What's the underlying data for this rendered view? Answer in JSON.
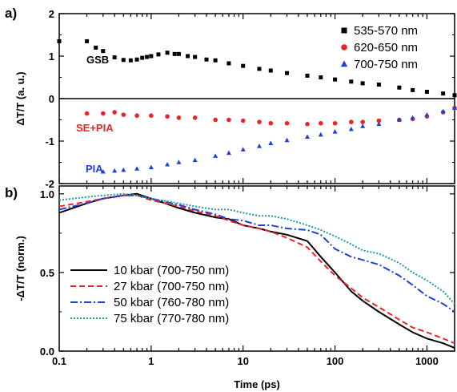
{
  "chart_data": [
    {
      "type": "scatter",
      "panel_label": "a)",
      "ylabel": "ΔT/T (a. u.)",
      "xlim": [
        0.1,
        2000
      ],
      "xscale": "log",
      "ylim": [
        -2,
        2
      ],
      "yticks": [
        "-2",
        "-1",
        "0",
        "1",
        "2"
      ],
      "zero_line": true,
      "legend_position": "top-right",
      "annotations": [
        {
          "text": "GSB",
          "x": 0.22,
          "y": 0.85,
          "color": "#000000"
        },
        {
          "text": "SE+PIA",
          "x": 0.11,
          "y": -0.65,
          "color": "#e8262a"
        },
        {
          "text": "PIA",
          "x": 0.12,
          "y": -1.45,
          "color": "#1f3fd6"
        }
      ],
      "series": [
        {
          "name": "535-570 nm",
          "color": "#000000",
          "marker": "square",
          "x": [
            0.1,
            0.2,
            0.25,
            0.3,
            0.4,
            0.5,
            0.6,
            0.7,
            0.8,
            0.9,
            1.0,
            1.2,
            1.5,
            1.8,
            2.0,
            2.5,
            3.0,
            4.0,
            5.0,
            7.0,
            10,
            15,
            20,
            30,
            50,
            70,
            100,
            150,
            200,
            300,
            500,
            700,
            1000,
            1500,
            2000
          ],
          "y": [
            1.35,
            1.35,
            1.2,
            1.12,
            0.97,
            0.91,
            0.9,
            0.92,
            0.96,
            0.98,
            1.0,
            1.04,
            1.08,
            1.05,
            1.05,
            1.0,
            0.98,
            0.92,
            0.9,
            0.83,
            0.77,
            0.7,
            0.66,
            0.6,
            0.54,
            0.5,
            0.45,
            0.4,
            0.36,
            0.33,
            0.26,
            0.2,
            0.16,
            0.12,
            0.08
          ]
        },
        {
          "name": "620-650 nm",
          "color": "#e8262a",
          "marker": "circle",
          "x": [
            0.2,
            0.3,
            0.4,
            0.5,
            0.7,
            1.0,
            1.5,
            2.0,
            3.0,
            5.0,
            7.0,
            10,
            15,
            20,
            30,
            50,
            70,
            100,
            150,
            200,
            300,
            500,
            700,
            1000,
            1500,
            2000
          ],
          "y": [
            -0.35,
            -0.35,
            -0.32,
            -0.38,
            -0.4,
            -0.4,
            -0.42,
            -0.45,
            -0.45,
            -0.5,
            -0.5,
            -0.52,
            -0.55,
            -0.58,
            -0.58,
            -0.6,
            -0.58,
            -0.58,
            -0.55,
            -0.55,
            -0.52,
            -0.5,
            -0.48,
            -0.42,
            -0.32,
            -0.22
          ]
        },
        {
          "name": "700-750 nm",
          "color": "#1f3fd6",
          "marker": "triangle",
          "x": [
            0.3,
            0.4,
            0.5,
            0.7,
            1.0,
            1.5,
            2.0,
            3.0,
            5.0,
            7.0,
            10,
            15,
            20,
            30,
            50,
            70,
            100,
            150,
            200,
            300,
            500,
            700,
            1000,
            1500,
            2000
          ],
          "y": [
            -1.72,
            -1.7,
            -1.68,
            -1.65,
            -1.62,
            -1.55,
            -1.5,
            -1.45,
            -1.35,
            -1.28,
            -1.2,
            -1.12,
            -1.05,
            -0.98,
            -0.9,
            -0.85,
            -0.78,
            -0.72,
            -0.65,
            -0.6,
            -0.5,
            -0.45,
            -0.38,
            -0.3,
            -0.22
          ]
        }
      ]
    },
    {
      "type": "line",
      "panel_label": "b)",
      "xlabel": "Time (ps)",
      "ylabel": "-ΔT/T (norm.)",
      "xlim": [
        0.1,
        2000
      ],
      "xscale": "log",
      "xticks": [
        "0.1",
        "1",
        "10",
        "100",
        "1000"
      ],
      "ylim": [
        0.0,
        1.05
      ],
      "yticks": [
        "0.0",
        "0.5",
        "1.0"
      ],
      "legend_position": "lower-left",
      "series": [
        {
          "name": "10 kbar (700-750 nm)",
          "color": "#000000",
          "dash": "solid",
          "x": [
            0.1,
            0.2,
            0.3,
            0.5,
            0.7,
            1,
            2,
            3,
            5,
            7,
            10,
            15,
            20,
            30,
            50,
            70,
            100,
            150,
            200,
            300,
            500,
            700,
            1000,
            1500,
            2000
          ],
          "y": [
            0.88,
            0.94,
            0.97,
            0.99,
            1.0,
            0.97,
            0.91,
            0.88,
            0.85,
            0.84,
            0.8,
            0.78,
            0.76,
            0.74,
            0.7,
            0.6,
            0.5,
            0.38,
            0.32,
            0.25,
            0.17,
            0.12,
            0.08,
            0.05,
            0.02
          ]
        },
        {
          "name": "27 kbar (700-750 nm)",
          "color": "#e8262a",
          "dash": "dashed",
          "x": [
            0.1,
            0.2,
            0.3,
            0.5,
            0.7,
            1,
            2,
            3,
            5,
            7,
            10,
            15,
            20,
            30,
            50,
            70,
            100,
            150,
            200,
            300,
            500,
            700,
            1000,
            1500,
            2000
          ],
          "y": [
            0.92,
            0.95,
            0.97,
            0.99,
            0.99,
            0.96,
            0.92,
            0.89,
            0.86,
            0.83,
            0.8,
            0.78,
            0.76,
            0.72,
            0.66,
            0.57,
            0.48,
            0.4,
            0.34,
            0.28,
            0.2,
            0.15,
            0.12,
            0.08,
            0.05
          ]
        },
        {
          "name": "50 kbar (760-780 nm)",
          "color": "#1f3fd6",
          "dash": "dashdot",
          "x": [
            0.1,
            0.2,
            0.3,
            0.5,
            0.7,
            1,
            2,
            3,
            5,
            7,
            10,
            15,
            20,
            30,
            50,
            70,
            100,
            150,
            200,
            300,
            500,
            700,
            1000,
            1500,
            2000
          ],
          "y": [
            0.9,
            0.94,
            0.97,
            0.99,
            0.99,
            0.97,
            0.93,
            0.9,
            0.87,
            0.84,
            0.83,
            0.8,
            0.8,
            0.78,
            0.77,
            0.74,
            0.65,
            0.6,
            0.58,
            0.55,
            0.48,
            0.42,
            0.35,
            0.3,
            0.25
          ]
        },
        {
          "name": "75 kbar (770-780 nm)",
          "color": "#1a9c9c",
          "dash": "dotted",
          "x": [
            0.1,
            0.2,
            0.3,
            0.5,
            0.7,
            1,
            2,
            3,
            5,
            7,
            10,
            15,
            20,
            30,
            50,
            70,
            100,
            150,
            200,
            300,
            500,
            700,
            1000,
            1500,
            2000
          ],
          "y": [
            0.96,
            0.98,
            0.99,
            1.0,
            0.99,
            0.97,
            0.94,
            0.92,
            0.9,
            0.9,
            0.88,
            0.86,
            0.86,
            0.84,
            0.8,
            0.77,
            0.73,
            0.68,
            0.64,
            0.62,
            0.56,
            0.5,
            0.45,
            0.38,
            0.3
          ]
        }
      ]
    }
  ]
}
